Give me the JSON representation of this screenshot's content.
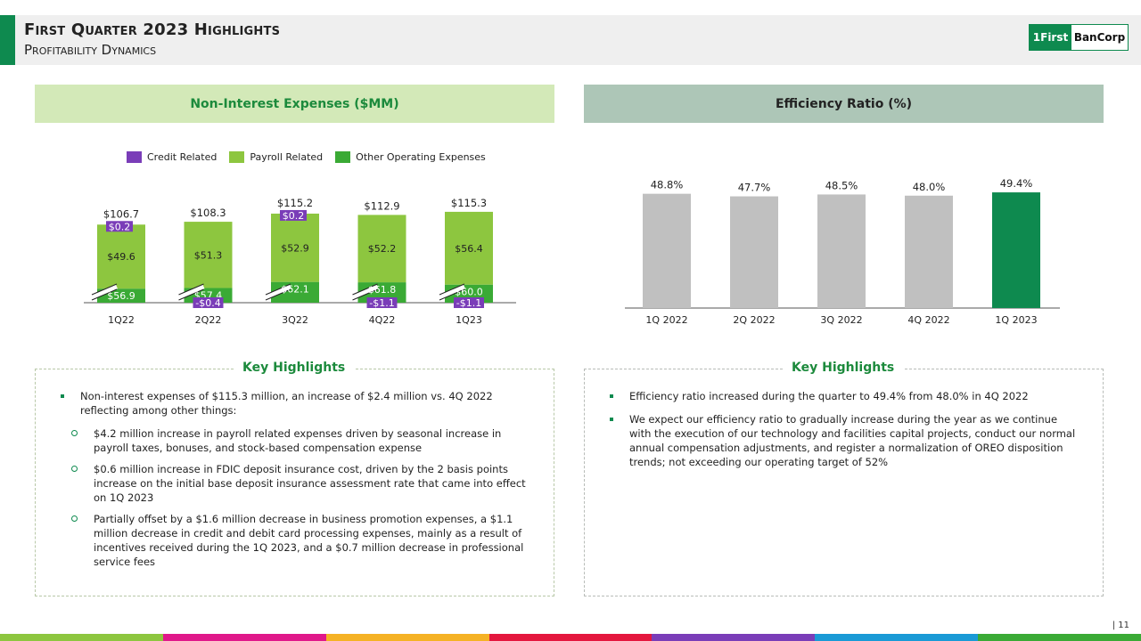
{
  "header": {
    "title": "First Quarter 2023 Highlights",
    "subtitle": "Profitability Dynamics",
    "logo_left": "1First",
    "logo_right": "BanCorp"
  },
  "colors": {
    "credit": "#7a3db8",
    "payroll": "#8dc63f",
    "other": "#3aaa35",
    "ratio_gray": "#c0c0c0",
    "ratio_highlight": "#0e8a4f",
    "footer": [
      "#8dc63f",
      "#e0188a",
      "#f5b225",
      "#e4173e",
      "#7a3db8",
      "#1a9ad6",
      "#3aaa35"
    ]
  },
  "left_panel": {
    "title": "Non-Interest Expenses ($MM)",
    "legend": [
      "Credit Related",
      "Payroll Related",
      "Other Operating Expenses"
    ]
  },
  "right_panel": {
    "title": "Efficiency Ratio (%)"
  },
  "chart_data": [
    {
      "type": "bar",
      "stacked": true,
      "categories": [
        "1Q22",
        "2Q22",
        "3Q22",
        "4Q22",
        "1Q23"
      ],
      "series": [
        {
          "name": "Credit Related",
          "values": [
            0.2,
            -0.4,
            0.2,
            -1.1,
            -1.1
          ],
          "labels": [
            "$0.2",
            "-$0.4",
            "$0.2",
            "-$1.1",
            "-$1.1"
          ]
        },
        {
          "name": "Payroll Related",
          "values": [
            49.6,
            51.3,
            52.9,
            52.2,
            56.4
          ],
          "labels": [
            "$49.6",
            "$51.3",
            "$52.9",
            "$52.2",
            "$56.4"
          ]
        },
        {
          "name": "Other Operating Expenses",
          "values": [
            56.9,
            57.4,
            62.1,
            61.8,
            60.0
          ],
          "labels": [
            "$56.9",
            "$57.4",
            "$62.1",
            "$61.8",
            "$60.0"
          ]
        }
      ],
      "totals": [
        106.7,
        108.3,
        115.2,
        112.9,
        115.3
      ],
      "total_labels": [
        "$106.7",
        "$108.3",
        "$115.2",
        "$112.9",
        "$115.3"
      ],
      "axis_break": true,
      "legend_position": "top"
    },
    {
      "type": "bar",
      "categories": [
        "1Q 2022",
        "2Q 2022",
        "3Q 2022",
        "4Q 2022",
        "1Q 2023"
      ],
      "values": [
        48.8,
        47.7,
        48.5,
        48.0,
        49.4
      ],
      "labels": [
        "48.8%",
        "47.7%",
        "48.5%",
        "48.0%",
        "49.4%"
      ],
      "highlight_index": 4
    }
  ],
  "highlights_left": {
    "title": "Key Highlights",
    "bullet": "Non-interest expenses of $115.3 million, an increase of $2.4 million vs. 4Q 2022 reflecting among other things:",
    "subs": [
      "$4.2 million increase in payroll related expenses driven by seasonal increase in payroll taxes, bonuses, and stock-based compensation expense",
      "$0.6 million increase in FDIC deposit insurance cost, driven by the 2 basis points increase on the initial base deposit insurance assessment rate that came into effect on 1Q 2023",
      "Partially offset by a $1.6 million decrease in business promotion expenses, a $1.1 million decrease in credit and debit card processing expenses, mainly as a result of incentives received during the 1Q 2023, and a $0.7 million decrease in professional service fees"
    ]
  },
  "highlights_right": {
    "title": "Key Highlights",
    "bullets": [
      "Efficiency ratio increased during the quarter to 49.4% from 48.0% in 4Q 2022",
      "We expect our efficiency ratio to gradually increase during the year as we continue with the execution of our technology and facilities capital projects, conduct our normal annual compensation adjustments, and register a normalization of OREO disposition trends; not exceeding our operating target of 52%"
    ]
  },
  "page_number": "| 11"
}
